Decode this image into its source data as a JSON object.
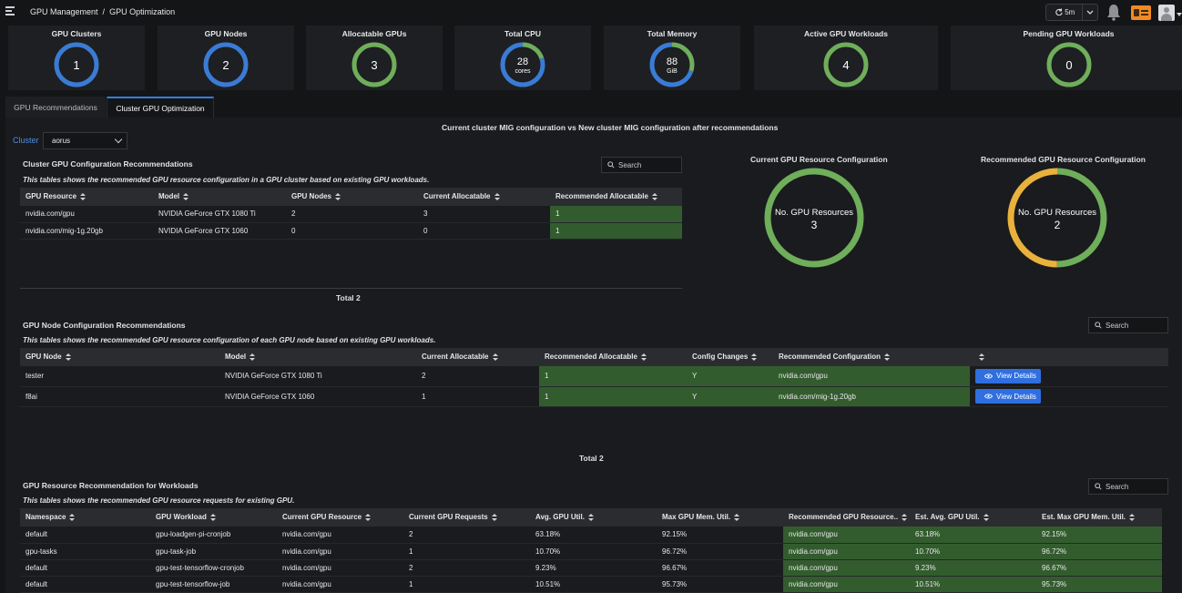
{
  "breadcrumb": {
    "parent": "GPU Management",
    "separator": "/",
    "current": "GPU Optimization"
  },
  "toolbar": {
    "refresh_label": "5m"
  },
  "kpis": [
    {
      "title": "GPU Clusters",
      "value": "1",
      "unit": "",
      "ring": [
        {
          "fraction": 1.0,
          "color": "#3a7bd5"
        }
      ]
    },
    {
      "title": "GPU Nodes",
      "value": "2",
      "unit": "",
      "ring": [
        {
          "fraction": 1.0,
          "color": "#3a7bd5"
        }
      ]
    },
    {
      "title": "Allocatable GPUs",
      "value": "3",
      "unit": "",
      "ring": [
        {
          "fraction": 1.0,
          "color": "#6fae5a"
        }
      ]
    },
    {
      "title": "Total CPU",
      "value": "28",
      "unit": "cores",
      "ring": [
        {
          "fraction": 0.2,
          "color": "#6fae5a"
        },
        {
          "fraction": 0.8,
          "color": "#3a7bd5"
        }
      ]
    },
    {
      "title": "Total Memory",
      "value": "88",
      "unit": "GiB",
      "ring": [
        {
          "fraction": 0.3,
          "color": "#6fae5a"
        },
        {
          "fraction": 0.7,
          "color": "#3a7bd5"
        }
      ]
    },
    {
      "title": "Active GPU Workloads",
      "value": "4",
      "unit": "",
      "ring": [
        {
          "fraction": 1.0,
          "color": "#6fae5a"
        }
      ]
    },
    {
      "title": "Pending GPU Workloads",
      "value": "0",
      "unit": "",
      "ring": [
        {
          "fraction": 1.0,
          "color": "#6fae5a"
        }
      ]
    }
  ],
  "tabs": {
    "recommendations": "GPU Recommendations",
    "cluster_optimization": "Cluster GPU Optimization"
  },
  "mig_title": "Current cluster MIG configuration vs New cluster MIG configuration after recommendations",
  "cluster": {
    "label": "Cluster",
    "value": "aorus"
  },
  "search_placeholder": "Search",
  "cluster_config": {
    "title": "Cluster GPU Configuration Recommendations",
    "description": "This tables shows the recommended GPU resource configuration in a GPU cluster based on existing GPU workloads.",
    "headers": [
      "GPU Resource",
      "Model",
      "GPU Nodes",
      "Current Allocatable",
      "Recommended Allocatable"
    ],
    "rows": [
      [
        "nvidia.com/gpu",
        "NVIDIA GeForce GTX 1080 Ti",
        "2",
        "3",
        "1"
      ],
      [
        "nvidia.com/mig-1g.20gb",
        "NVIDIA GeForce GTX 1060",
        "0",
        "0",
        "1"
      ]
    ],
    "total": "Total 2"
  },
  "current_donut": {
    "title": "Current GPU Resource Configuration",
    "label": "No. GPU Resources",
    "value": "3",
    "ring": [
      {
        "fraction": 1.0,
        "color": "#6fae5a"
      }
    ]
  },
  "recommended_donut": {
    "title": "Recommended GPU Resource Configuration",
    "label": "No. GPU Resources",
    "value": "2",
    "ring": [
      {
        "fraction": 0.5,
        "color": "#6fae5a"
      },
      {
        "fraction": 0.5,
        "color": "#e8b23c"
      }
    ]
  },
  "node_config": {
    "title": "GPU Node Configuration Recommendations",
    "description": "This tables shows the recommended GPU resource configuration of each GPU node based on existing GPU workloads.",
    "headers": [
      "GPU Node",
      "Model",
      "Current Allocatable",
      "Recommended Allocatable",
      "Config Changes",
      "Recommended Configuration",
      ""
    ],
    "rows": [
      [
        "tester",
        "NVIDIA GeForce GTX 1080 Ti",
        "2",
        "1",
        "Y",
        "nvidia.com/gpu"
      ],
      [
        "f8ai",
        "NVIDIA GeForce GTX 1060",
        "1",
        "1",
        "Y",
        "nvidia.com/mig-1g.20gb"
      ]
    ],
    "button_label": "View Details",
    "total": "Total 2"
  },
  "workload_rec": {
    "title": "GPU Resource Recommendation for Workloads",
    "description": "This tables shows the recommended GPU resource requests for existing GPU.",
    "headers": [
      "Namespace",
      "GPU Workload",
      "Current GPU Resource",
      "Current GPU Requests",
      "Avg. GPU Util.",
      "Max GPU Mem. Util.",
      "Recommended GPU Resource..",
      "Est. Avg. GPU Util.",
      "Est. Max GPU Mem. Util."
    ],
    "rows": [
      [
        "default",
        "gpu-loadgen-pi-cronjob",
        "nvidia.com/gpu",
        "2",
        "63.18%",
        "92.15%",
        "nvidia.com/gpu",
        "63.18%",
        "92.15%"
      ],
      [
        "gpu-tasks",
        "gpu-task-job",
        "nvidia.com/gpu",
        "1",
        "10.70%",
        "96.72%",
        "nvidia.com/gpu",
        "10.70%",
        "96.72%"
      ],
      [
        "default",
        "gpu-test-tensorflow-cronjob",
        "nvidia.com/gpu",
        "2",
        "9.23%",
        "96.67%",
        "nvidia.com/gpu",
        "9.23%",
        "96.67%"
      ],
      [
        "default",
        "gpu-test-tensorflow-job",
        "nvidia.com/gpu",
        "1",
        "10.51%",
        "95.73%",
        "nvidia.com/gpu",
        "10.51%",
        "95.73%"
      ]
    ]
  }
}
